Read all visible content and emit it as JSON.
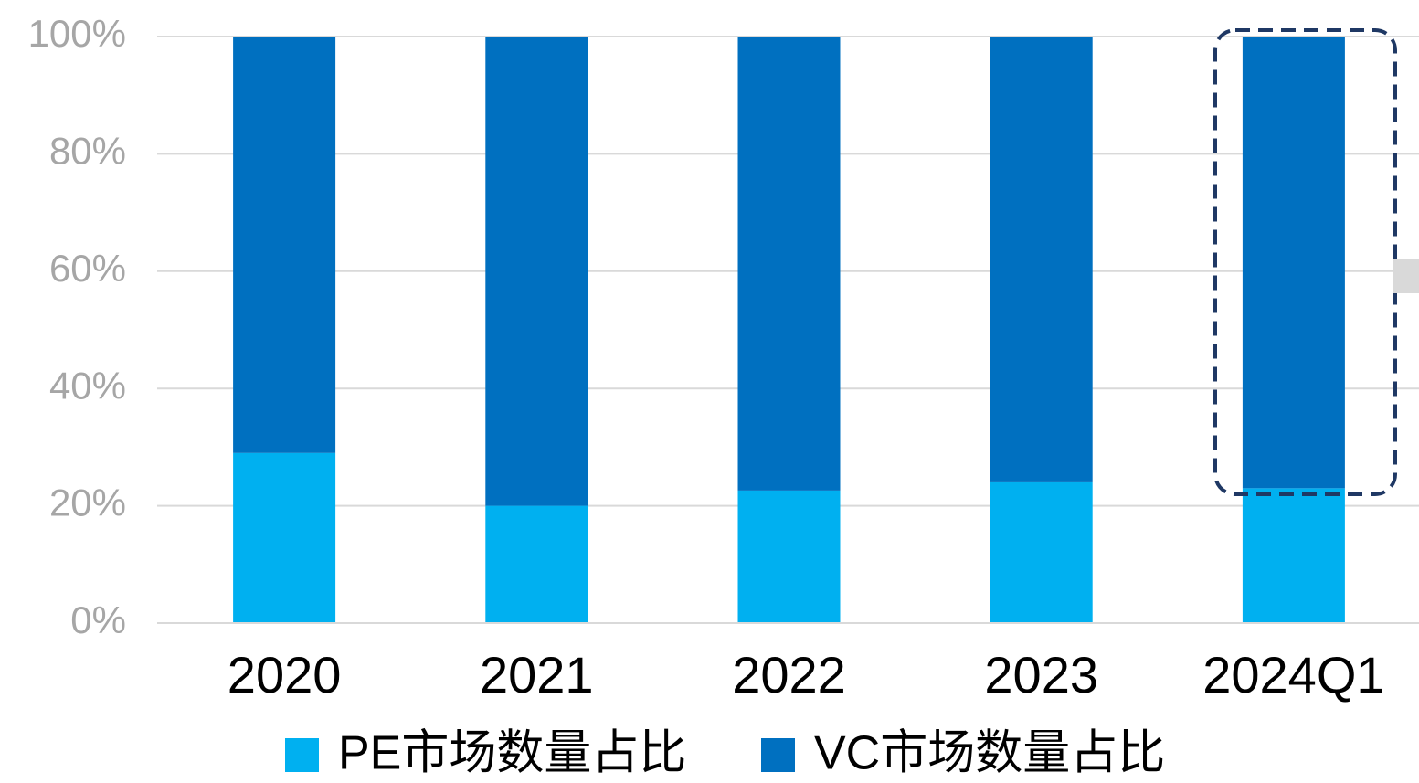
{
  "chart_data": {
    "type": "stacked_bar",
    "categories": [
      "2020",
      "2021",
      "2022",
      "2023",
      "2024Q1"
    ],
    "series": [
      {
        "name": "PE市场数量占比",
        "color": "#00b0f0",
        "values": [
          29,
          20,
          22.6,
          24,
          23
        ]
      },
      {
        "name": "VC市场数量占比",
        "color": "#0070c0",
        "values": [
          71,
          80,
          77.4,
          76,
          77
        ]
      }
    ],
    "ylim": [
      0,
      100
    ],
    "yticks": [
      {
        "value": 0,
        "label": "0%"
      },
      {
        "value": 20,
        "label": "20%"
      },
      {
        "value": 40,
        "label": "40%"
      },
      {
        "value": 60,
        "label": "60%"
      },
      {
        "value": 80,
        "label": "80%"
      },
      {
        "value": 100,
        "label": "100%"
      }
    ],
    "grid": true,
    "legend": "bottom"
  }
}
